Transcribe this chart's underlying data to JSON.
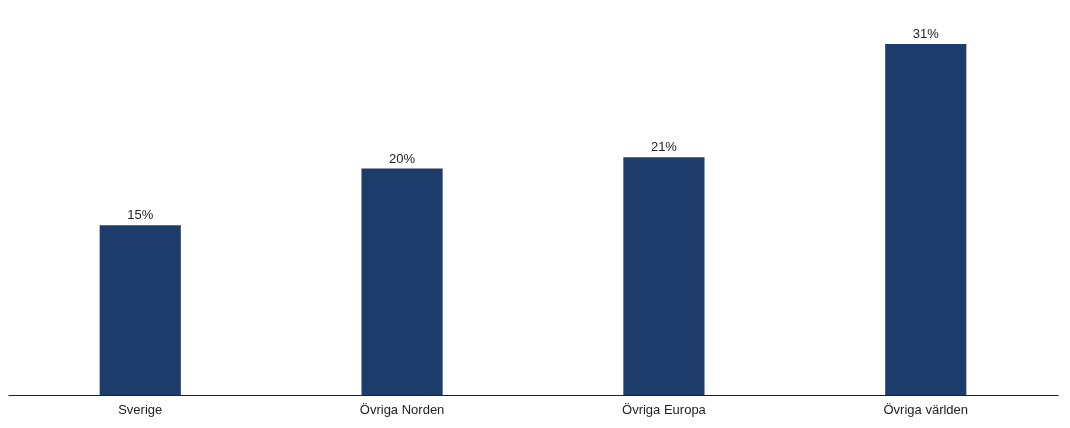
{
  "chart_data": {
    "type": "bar",
    "categories": [
      "Sverige",
      "Övriga Norden",
      "Övriga Europa",
      "Övriga världen"
    ],
    "values": [
      15,
      20,
      21,
      31
    ],
    "color": "#1e3c6b",
    "data_labels": true,
    "value_labels": [
      "15%",
      "20%",
      "21%",
      "31%"
    ],
    "grid": false
  }
}
